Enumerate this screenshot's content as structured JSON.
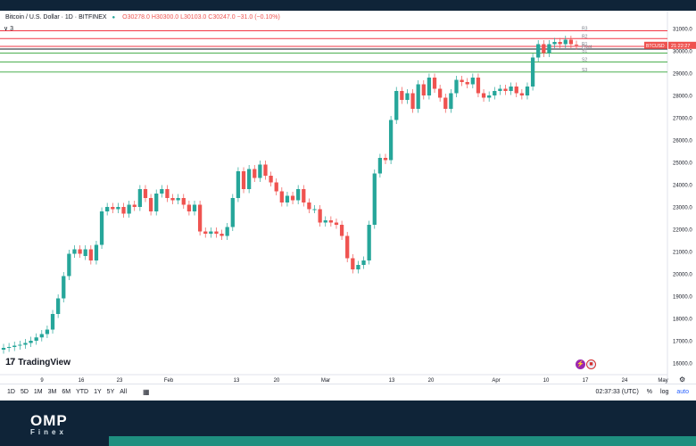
{
  "symbol_bar": {
    "symbol": "Bitcoin / U.S. Dollar · 1D · BITFINEX",
    "ohlc": "O30278.0  H30300.0  L30103.0  C30247.0  −31.0 (−0.10%)"
  },
  "indicator_toggle": "∨ 3",
  "chart_data": {
    "type": "candlestick",
    "y_ticks": [
      "31000.0",
      "30000.0",
      "29000.0",
      "28000.0",
      "27000.0",
      "26000.0",
      "25000.0",
      "24000.0",
      "23000.0",
      "22000.0",
      "21000.0",
      "20000.0",
      "19000.0",
      "18000.0",
      "17000.0",
      "16000.0"
    ],
    "x_ticks": [
      "9",
      "16",
      "23",
      "Feb",
      "13",
      "20",
      "Mar",
      "13",
      "20",
      "Apr",
      "10",
      "17",
      "24",
      "May"
    ],
    "pivot_labels": [
      "R3",
      "R2",
      "R1",
      "Pivot",
      "S1",
      "S2",
      "S3"
    ],
    "pivot_levels": [
      30900,
      30550,
      30200,
      30080,
      29900,
      29500,
      29050
    ],
    "price_tag": "BTCUSD",
    "price_tag_time": "21:22:27",
    "colors": {
      "up": "#26a69a",
      "down": "#ef5350",
      "resistance": "#f23645",
      "support": "#4caf50"
    },
    "candles": [
      [
        16600,
        16680
      ],
      [
        16680,
        16720
      ],
      [
        16720,
        16780
      ],
      [
        16780,
        16820
      ],
      [
        16820,
        16900
      ],
      [
        16900,
        17000
      ],
      [
        17000,
        17150
      ],
      [
        17150,
        17300
      ],
      [
        17300,
        17500
      ],
      [
        17500,
        18200
      ],
      [
        18200,
        18900
      ],
      [
        18900,
        19900
      ],
      [
        19900,
        20900
      ],
      [
        20900,
        21100
      ],
      [
        21100,
        20900
      ],
      [
        20800,
        21100
      ],
      [
        21100,
        20600
      ],
      [
        20600,
        21300
      ],
      [
        21300,
        22800
      ],
      [
        22800,
        23000
      ],
      [
        23000,
        22900
      ],
      [
        22900,
        23000
      ],
      [
        23000,
        22700
      ],
      [
        22700,
        23100
      ],
      [
        23100,
        23000
      ],
      [
        23000,
        23800
      ],
      [
        23800,
        23400
      ],
      [
        23400,
        22800
      ],
      [
        22800,
        23600
      ],
      [
        23600,
        23800
      ],
      [
        23800,
        23400
      ],
      [
        23400,
        23300
      ],
      [
        23300,
        23400
      ],
      [
        23400,
        23100
      ],
      [
        23100,
        22800
      ],
      [
        22800,
        23100
      ],
      [
        23100,
        21900
      ],
      [
        21900,
        21800
      ],
      [
        21800,
        21900
      ],
      [
        21900,
        21800
      ],
      [
        21800,
        21700
      ],
      [
        21700,
        22100
      ],
      [
        22100,
        23400
      ],
      [
        23400,
        24600
      ],
      [
        24600,
        23800
      ],
      [
        23800,
        24700
      ],
      [
        24700,
        24300
      ],
      [
        24300,
        24900
      ],
      [
        24900,
        24400
      ],
      [
        24400,
        24100
      ],
      [
        24100,
        23700
      ],
      [
        23700,
        23200
      ],
      [
        23200,
        23500
      ],
      [
        23500,
        23300
      ],
      [
        23300,
        23800
      ],
      [
        23800,
        23200
      ],
      [
        23200,
        22900
      ],
      [
        22900,
        22900
      ],
      [
        22900,
        22300
      ],
      [
        22300,
        22400
      ],
      [
        22400,
        22300
      ],
      [
        22300,
        22200
      ],
      [
        22200,
        21700
      ],
      [
        21700,
        20700
      ],
      [
        20700,
        20200
      ],
      [
        20200,
        20400
      ],
      [
        20400,
        20600
      ],
      [
        20600,
        22200
      ],
      [
        22200,
        24500
      ],
      [
        24500,
        25200
      ],
      [
        25200,
        25100
      ],
      [
        25100,
        26900
      ],
      [
        26900,
        28200
      ],
      [
        28200,
        27800
      ],
      [
        27800,
        28100
      ],
      [
        28100,
        27400
      ],
      [
        27400,
        28500
      ],
      [
        28500,
        28000
      ],
      [
        28000,
        28800
      ],
      [
        28800,
        28300
      ],
      [
        28300,
        27900
      ],
      [
        27900,
        27400
      ],
      [
        27400,
        28100
      ],
      [
        28100,
        28700
      ],
      [
        28700,
        28600
      ],
      [
        28600,
        28500
      ],
      [
        28500,
        28800
      ],
      [
        28800,
        28100
      ],
      [
        28100,
        27900
      ],
      [
        27900,
        28000
      ],
      [
        28000,
        28200
      ],
      [
        28200,
        28300
      ],
      [
        28300,
        28200
      ],
      [
        28200,
        28400
      ],
      [
        28400,
        28100
      ],
      [
        28100,
        28000
      ],
      [
        28000,
        28400
      ],
      [
        28400,
        29700
      ],
      [
        29700,
        30300
      ],
      [
        30300,
        29900
      ],
      [
        29900,
        30300
      ],
      [
        30300,
        30400
      ],
      [
        30400,
        30300
      ],
      [
        30300,
        30500
      ],
      [
        30500,
        30300
      ],
      [
        30278,
        30247
      ]
    ]
  },
  "bottom_bar": {
    "ranges": [
      "1D",
      "5D",
      "1M",
      "3M",
      "6M",
      "YTD",
      "1Y",
      "5Y",
      "All"
    ],
    "clock": "02:37:33 (UTC)",
    "percent": "%",
    "log": "log",
    "auto": "auto"
  },
  "branding": {
    "tradingview": "TradingView",
    "omp": "OMP",
    "finex": "Finex"
  }
}
